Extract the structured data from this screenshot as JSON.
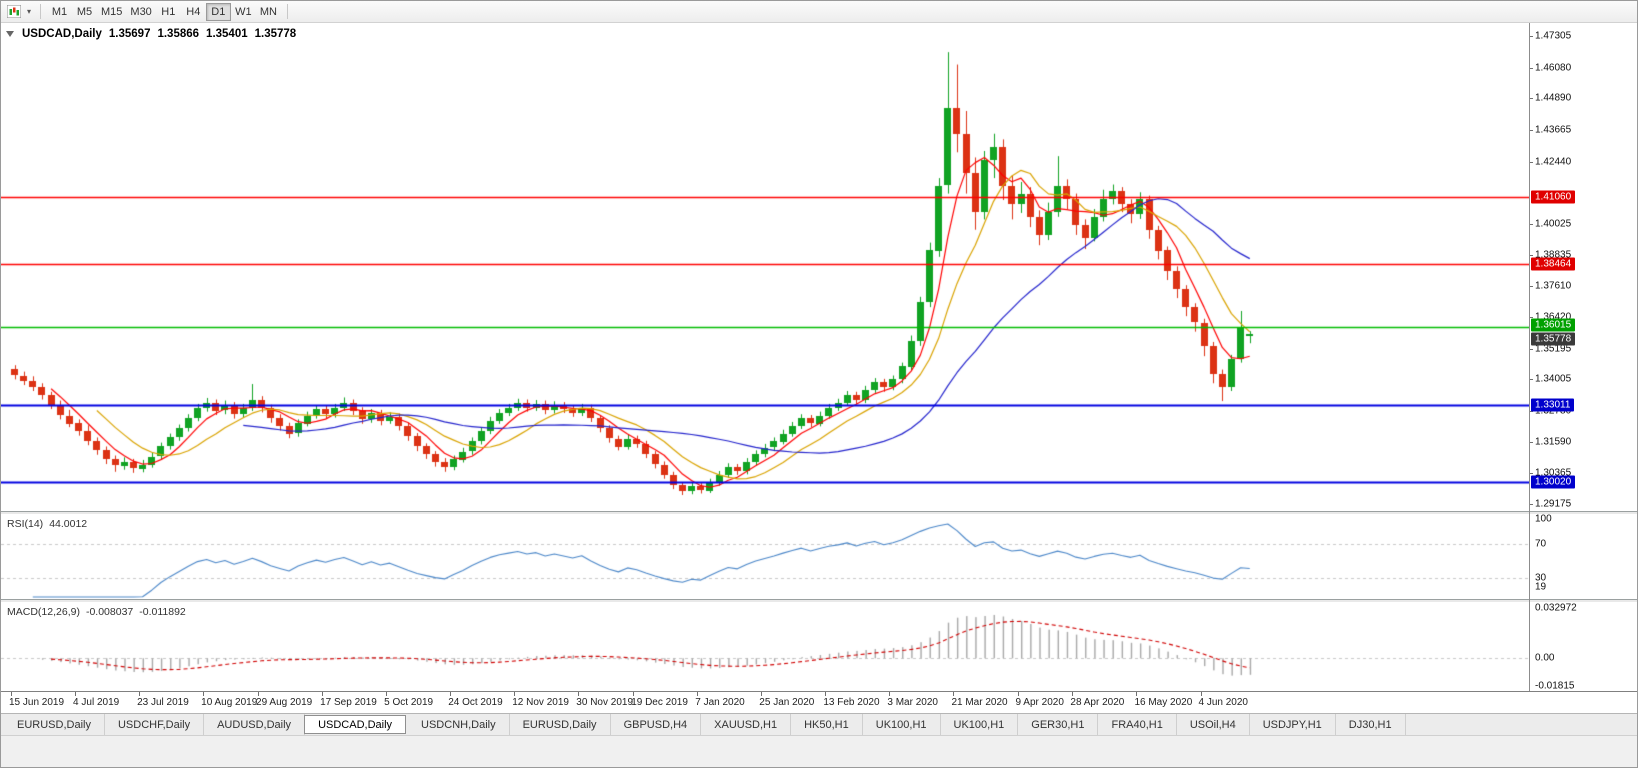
{
  "toolbar": {
    "timeframes": [
      {
        "label": "M1",
        "active": false
      },
      {
        "label": "M5",
        "active": false
      },
      {
        "label": "M15",
        "active": false
      },
      {
        "label": "M30",
        "active": false
      },
      {
        "label": "H1",
        "active": false
      },
      {
        "label": "H4",
        "active": false
      },
      {
        "label": "D1",
        "active": true
      },
      {
        "label": "W1",
        "active": false
      },
      {
        "label": "MN",
        "active": false
      }
    ]
  },
  "chart": {
    "info": {
      "symbol": "USDCAD,Daily",
      "open": "1.35697",
      "high": "1.35866",
      "low": "1.35401",
      "close": "1.35778"
    },
    "axis": {
      "range": {
        "top": 1.4781,
        "bottom": 1.289
      },
      "ticks": [
        "1.47305",
        "1.46080",
        "1.44890",
        "1.43665",
        "1.42440",
        "1.40025",
        "1.38835",
        "1.37610",
        "1.36420",
        "1.35195",
        "1.34005",
        "1.32780",
        "1.31590",
        "1.30365",
        "1.29175"
      ],
      "badges": [
        {
          "price": 1.4106,
          "label": "1.41060",
          "color": "#e00000",
          "offset": 0
        },
        {
          "price": 1.38464,
          "label": "1.38464",
          "color": "#e00000",
          "offset": 0
        },
        {
          "price": 1.36015,
          "label": "1.36015",
          "color": "#00a000",
          "offset": -2
        },
        {
          "price": 1.35778,
          "label": "1.35778",
          "color": "#3a3a3a",
          "offset": 5
        },
        {
          "price": 1.33011,
          "label": "1.33011",
          "color": "#0000cc",
          "offset": 0
        },
        {
          "price": 1.3002,
          "label": "1.30020",
          "color": "#0000cc",
          "offset": 0
        }
      ]
    },
    "hlines": [
      {
        "price": 1.4106,
        "color": "#ff0000",
        "width": 1.5
      },
      {
        "price": 1.38464,
        "color": "#ff0000",
        "width": 1.5
      },
      {
        "price": 1.36015,
        "color": "#00bb00",
        "width": 1.6
      },
      {
        "price": 1.33011,
        "color": "#0000e0",
        "width": 2.2
      },
      {
        "price": 1.3002,
        "color": "#0000e0",
        "width": 2.2
      }
    ],
    "moving_averages": [
      {
        "period": 5,
        "color": "#ff0000"
      },
      {
        "period": 10,
        "color": "#d9a300"
      },
      {
        "period": 26,
        "color": "#2222cc"
      }
    ],
    "candle_colors": {
      "up": "#10a323",
      "down": "#dc3214"
    },
    "candles": [
      [
        1.344,
        1.3455,
        1.34,
        1.3415
      ],
      [
        1.3415,
        1.343,
        1.3378,
        1.3395
      ],
      [
        1.3395,
        1.3412,
        1.3355,
        1.337
      ],
      [
        1.337,
        1.3385,
        1.3322,
        1.334
      ],
      [
        1.334,
        1.3352,
        1.3285,
        1.33
      ],
      [
        1.33,
        1.3318,
        1.3245,
        1.326
      ],
      [
        1.326,
        1.3282,
        1.3215,
        1.323
      ],
      [
        1.323,
        1.3245,
        1.3182,
        1.32
      ],
      [
        1.32,
        1.3222,
        1.3145,
        1.316
      ],
      [
        1.316,
        1.3175,
        1.3108,
        1.3125
      ],
      [
        1.3125,
        1.314,
        1.3072,
        1.309
      ],
      [
        1.309,
        1.3105,
        1.3042,
        1.3065
      ],
      [
        1.3065,
        1.3098,
        1.305,
        1.308
      ],
      [
        1.308,
        1.3092,
        1.3038,
        1.3055
      ],
      [
        1.3055,
        1.3088,
        1.304,
        1.307
      ],
      [
        1.307,
        1.3118,
        1.3058,
        1.31
      ],
      [
        1.31,
        1.3155,
        1.3088,
        1.314
      ],
      [
        1.314,
        1.319,
        1.3128,
        1.3175
      ],
      [
        1.3175,
        1.3225,
        1.3162,
        1.321
      ],
      [
        1.321,
        1.3265,
        1.3198,
        1.325
      ],
      [
        1.325,
        1.3305,
        1.3238,
        1.329
      ],
      [
        1.329,
        1.3328,
        1.3275,
        1.331
      ],
      [
        1.331,
        1.3322,
        1.3262,
        1.328
      ],
      [
        1.328,
        1.3318,
        1.3265,
        1.33
      ],
      [
        1.33,
        1.3312,
        1.3248,
        1.3265
      ],
      [
        1.3265,
        1.3305,
        1.3252,
        1.329
      ],
      [
        1.329,
        1.3382,
        1.3278,
        1.332
      ],
      [
        1.332,
        1.3335,
        1.3272,
        1.329
      ],
      [
        1.329,
        1.3302,
        1.3232,
        1.325
      ],
      [
        1.325,
        1.3265,
        1.3202,
        1.322
      ],
      [
        1.322,
        1.3232,
        1.3172,
        1.319
      ],
      [
        1.319,
        1.3245,
        1.3178,
        1.323
      ],
      [
        1.323,
        1.3275,
        1.3218,
        1.326
      ],
      [
        1.326,
        1.33,
        1.3248,
        1.3285
      ],
      [
        1.3285,
        1.3298,
        1.3248,
        1.3265
      ],
      [
        1.3265,
        1.3305,
        1.3252,
        1.329
      ],
      [
        1.329,
        1.333,
        1.3278,
        1.331
      ],
      [
        1.331,
        1.3322,
        1.3262,
        1.328
      ],
      [
        1.328,
        1.3292,
        1.3228,
        1.3245
      ],
      [
        1.3245,
        1.3285,
        1.3232,
        1.327
      ],
      [
        1.327,
        1.3282,
        1.3222,
        1.324
      ],
      [
        1.324,
        1.3272,
        1.3228,
        1.3255
      ],
      [
        1.3255,
        1.3268,
        1.3202,
        1.322
      ],
      [
        1.322,
        1.3232,
        1.3162,
        1.318
      ],
      [
        1.318,
        1.3192,
        1.3122,
        1.314
      ],
      [
        1.314,
        1.3152,
        1.3092,
        1.311
      ],
      [
        1.311,
        1.3122,
        1.3062,
        1.308
      ],
      [
        1.308,
        1.3095,
        1.3042,
        1.306
      ],
      [
        1.306,
        1.3105,
        1.3048,
        1.309
      ],
      [
        1.309,
        1.3135,
        1.3078,
        1.312
      ],
      [
        1.312,
        1.3175,
        1.3108,
        1.316
      ],
      [
        1.316,
        1.3215,
        1.3148,
        1.32
      ],
      [
        1.32,
        1.3255,
        1.3188,
        1.324
      ],
      [
        1.324,
        1.3285,
        1.3228,
        1.327
      ],
      [
        1.327,
        1.3305,
        1.3258,
        1.329
      ],
      [
        1.329,
        1.3325,
        1.3278,
        1.331
      ],
      [
        1.331,
        1.3322,
        1.3275,
        1.329
      ],
      [
        1.329,
        1.332,
        1.3278,
        1.3305
      ],
      [
        1.3305,
        1.3318,
        1.3265,
        1.328
      ],
      [
        1.328,
        1.3315,
        1.3268,
        1.33
      ],
      [
        1.33,
        1.3312,
        1.327,
        1.3285
      ],
      [
        1.3285,
        1.3298,
        1.3255,
        1.327
      ],
      [
        1.327,
        1.3305,
        1.3258,
        1.329
      ],
      [
        1.329,
        1.3302,
        1.3235,
        1.325
      ],
      [
        1.325,
        1.3262,
        1.3195,
        1.321
      ],
      [
        1.321,
        1.3222,
        1.3155,
        1.317
      ],
      [
        1.317,
        1.3182,
        1.3125,
        1.314
      ],
      [
        1.314,
        1.3185,
        1.3128,
        1.317
      ],
      [
        1.317,
        1.3182,
        1.3135,
        1.315
      ],
      [
        1.315,
        1.3162,
        1.3095,
        1.311
      ],
      [
        1.311,
        1.3122,
        1.3055,
        1.307
      ],
      [
        1.307,
        1.3082,
        1.3015,
        1.303
      ],
      [
        1.303,
        1.3042,
        1.2975,
        1.299
      ],
      [
        1.299,
        1.3002,
        1.2952,
        1.2965
      ],
      [
        1.2965,
        1.3,
        1.2955,
        1.2985
      ],
      [
        1.2985,
        1.2998,
        1.2958,
        1.297
      ],
      [
        1.297,
        1.3015,
        1.296,
        1.3
      ],
      [
        1.3,
        1.3045,
        1.2988,
        1.303
      ],
      [
        1.303,
        1.3075,
        1.3018,
        1.306
      ],
      [
        1.306,
        1.3072,
        1.303,
        1.3045
      ],
      [
        1.3045,
        1.3095,
        1.3032,
        1.308
      ],
      [
        1.308,
        1.3125,
        1.3068,
        1.311
      ],
      [
        1.311,
        1.315,
        1.3098,
        1.3135
      ],
      [
        1.3135,
        1.3175,
        1.3122,
        1.316
      ],
      [
        1.316,
        1.3205,
        1.3148,
        1.319
      ],
      [
        1.319,
        1.3235,
        1.3178,
        1.322
      ],
      [
        1.322,
        1.3265,
        1.3208,
        1.325
      ],
      [
        1.325,
        1.3262,
        1.3215,
        1.323
      ],
      [
        1.323,
        1.3275,
        1.3218,
        1.326
      ],
      [
        1.326,
        1.3305,
        1.3248,
        1.329
      ],
      [
        1.329,
        1.3325,
        1.3278,
        1.331
      ],
      [
        1.331,
        1.3355,
        1.3298,
        1.334
      ],
      [
        1.334,
        1.3352,
        1.3305,
        1.332
      ],
      [
        1.332,
        1.3375,
        1.3308,
        1.336
      ],
      [
        1.336,
        1.3405,
        1.3348,
        1.339
      ],
      [
        1.339,
        1.3402,
        1.3352,
        1.337
      ],
      [
        1.337,
        1.3415,
        1.3358,
        1.34
      ],
      [
        1.34,
        1.3465,
        1.3385,
        1.345
      ],
      [
        1.345,
        1.357,
        1.3435,
        1.355
      ],
      [
        1.355,
        1.372,
        1.353,
        1.37
      ],
      [
        1.37,
        1.393,
        1.368,
        1.39
      ],
      [
        1.39,
        1.418,
        1.3875,
        1.415
      ],
      [
        1.415,
        1.4668,
        1.412,
        1.445
      ],
      [
        1.445,
        1.462,
        1.428,
        1.435
      ],
      [
        1.435,
        1.444,
        1.412,
        1.42
      ],
      [
        1.42,
        1.426,
        1.398,
        1.405
      ],
      [
        1.405,
        1.4285,
        1.402,
        1.425
      ],
      [
        1.425,
        1.4352,
        1.418,
        1.43
      ],
      [
        1.43,
        1.433,
        1.4095,
        1.415
      ],
      [
        1.415,
        1.419,
        1.402,
        1.408
      ],
      [
        1.408,
        1.4165,
        1.4045,
        1.412
      ],
      [
        1.412,
        1.4145,
        1.399,
        1.403
      ],
      [
        1.403,
        1.4055,
        1.392,
        1.396
      ],
      [
        1.396,
        1.4085,
        1.394,
        1.405
      ],
      [
        1.405,
        1.4265,
        1.403,
        1.415
      ],
      [
        1.415,
        1.4175,
        1.406,
        1.41
      ],
      [
        1.41,
        1.412,
        1.396,
        1.4
      ],
      [
        1.4,
        1.402,
        1.3905,
        1.395
      ],
      [
        1.395,
        1.406,
        1.3935,
        1.403
      ],
      [
        1.403,
        1.4135,
        1.4012,
        1.41
      ],
      [
        1.41,
        1.4155,
        1.4078,
        1.413
      ],
      [
        1.413,
        1.4145,
        1.4048,
        1.408
      ],
      [
        1.408,
        1.4098,
        1.4005,
        1.404
      ],
      [
        1.404,
        1.4125,
        1.4022,
        1.41
      ],
      [
        1.41,
        1.4112,
        1.3945,
        1.398
      ],
      [
        1.398,
        1.3995,
        1.3865,
        1.39
      ],
      [
        1.39,
        1.3915,
        1.3785,
        1.382
      ],
      [
        1.382,
        1.3838,
        1.3715,
        1.375
      ],
      [
        1.375,
        1.3765,
        1.3645,
        1.368
      ],
      [
        1.368,
        1.3695,
        1.3585,
        1.362
      ],
      [
        1.362,
        1.3635,
        1.349,
        1.353
      ],
      [
        1.353,
        1.3545,
        1.3385,
        1.342
      ],
      [
        1.342,
        1.3438,
        1.3316,
        1.337
      ],
      [
        1.337,
        1.3495,
        1.3355,
        1.348
      ],
      [
        1.348,
        1.3665,
        1.3465,
        1.36
      ],
      [
        1.35697,
        1.35866,
        1.35401,
        1.35778
      ]
    ],
    "date_labels": [
      {
        "text": "15 Jun 2019",
        "bar": 0
      },
      {
        "text": "4 Jul 2019",
        "bar": 7
      },
      {
        "text": "23 Jul 2019",
        "bar": 14
      },
      {
        "text": "10 Aug 2019",
        "bar": 21
      },
      {
        "text": "29 Aug 2019",
        "bar": 27
      },
      {
        "text": "17 Sep 2019",
        "bar": 34
      },
      {
        "text": "5 Oct 2019",
        "bar": 41
      },
      {
        "text": "24 Oct 2019",
        "bar": 48
      },
      {
        "text": "12 Nov 2019",
        "bar": 55
      },
      {
        "text": "30 Nov 2019",
        "bar": 62
      },
      {
        "text": "19 Dec 2019",
        "bar": 68
      },
      {
        "text": "7 Jan 2020",
        "bar": 75
      },
      {
        "text": "25 Jan 2020",
        "bar": 82
      },
      {
        "text": "13 Feb 2020",
        "bar": 89
      },
      {
        "text": "3 Mar 2020",
        "bar": 96
      },
      {
        "text": "21 Mar 2020",
        "bar": 103
      },
      {
        "text": "9 Apr 2020",
        "bar": 110
      },
      {
        "text": "28 Apr 2020",
        "bar": 116
      },
      {
        "text": "16 May 2020",
        "bar": 123
      },
      {
        "text": "4 Jun 2020",
        "bar": 130
      }
    ]
  },
  "rsi": {
    "name": "RSI(14)",
    "value": "44.0012",
    "period": 14,
    "color": "#4a86c8",
    "levels": [
      70,
      30
    ],
    "range": {
      "max": 100,
      "min": 10
    },
    "scale_labels": [
      {
        "v": 100,
        "label": "100"
      },
      {
        "v": 70,
        "label": "70"
      },
      {
        "v": 30,
        "label": "30"
      },
      {
        "v": 19,
        "label": "19"
      }
    ]
  },
  "macd": {
    "name": "MACD(12,26,9)",
    "value_main": "-0.008037",
    "value_signal": "-0.011892",
    "fast": 12,
    "slow": 26,
    "signal": 9,
    "hist_color": "#a8a8a8",
    "signal_color": "#d00000",
    "range": {
      "max": 0.033,
      "min": -0.0182
    },
    "scale_labels": [
      {
        "v": 0.032972,
        "label": "0.032972"
      },
      {
        "v": 0,
        "label": "0.00"
      },
      {
        "v": -0.01815,
        "label": "-0.01815"
      }
    ]
  },
  "tabs": [
    {
      "label": "EURUSD,Daily",
      "active": false
    },
    {
      "label": "USDCHF,Daily",
      "active": false
    },
    {
      "label": "AUDUSD,Daily",
      "active": false
    },
    {
      "label": "USDCAD,Daily",
      "active": true
    },
    {
      "label": "USDCNH,Daily",
      "active": false
    },
    {
      "label": "EURUSD,Daily",
      "active": false
    },
    {
      "label": "GBPUSD,H4",
      "active": false
    },
    {
      "label": "XAUUSD,H1",
      "active": false
    },
    {
      "label": "HK50,H1",
      "active": false
    },
    {
      "label": "UK100,H1",
      "active": false
    },
    {
      "label": "UK100,H1",
      "active": false
    },
    {
      "label": "GER30,H1",
      "active": false
    },
    {
      "label": "FRA40,H1",
      "active": false
    },
    {
      "label": "USOil,H4",
      "active": false
    },
    {
      "label": "USDJPY,H1",
      "active": false
    },
    {
      "label": "DJ30,H1",
      "active": false
    }
  ]
}
